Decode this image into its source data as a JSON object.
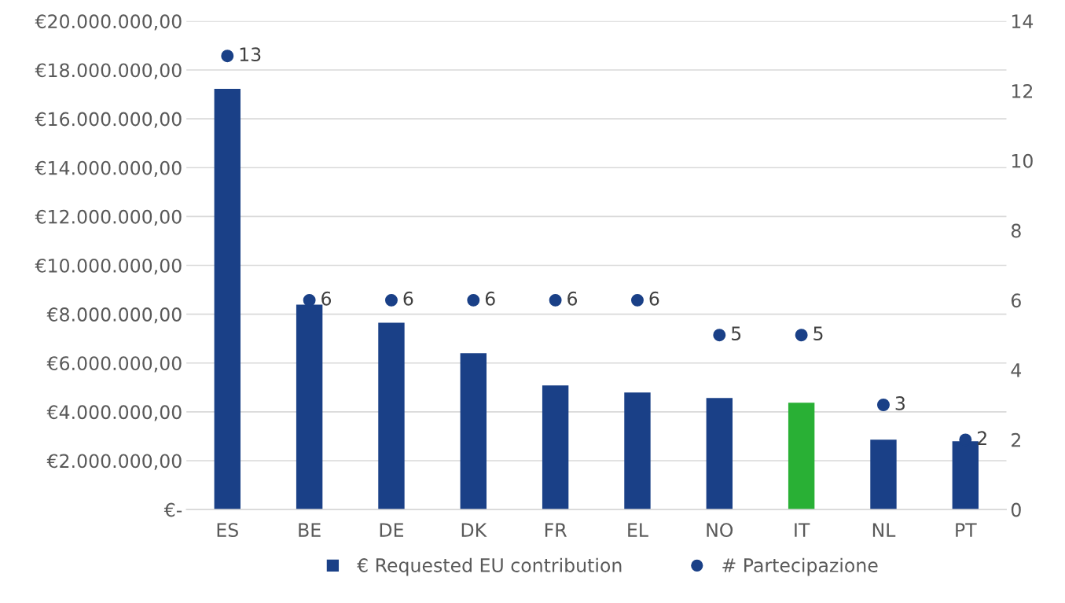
{
  "chart_data": {
    "type": "bar",
    "categories": [
      "ES",
      "BE",
      "DE",
      "DK",
      "FR",
      "EL",
      "NO",
      "IT",
      "NL",
      "PT"
    ],
    "series": [
      {
        "name": "€ Requested EU contribution",
        "color": "#1a4087",
        "colors": [
          "#1a4087",
          "#1a4087",
          "#1a4087",
          "#1a4087",
          "#1a4087",
          "#1a4087",
          "#1a4087",
          "#29b035",
          "#1a4087",
          "#1a4087"
        ],
        "values": [
          17230000,
          8390000,
          7650000,
          6400000,
          5080000,
          4790000,
          4570000,
          4370000,
          2860000,
          2800000
        ]
      },
      {
        "name": "# Partecipazione",
        "type": "scatter",
        "axis": "y2",
        "color": "#1a4087",
        "marker": "circle",
        "data_labels": true,
        "values": [
          13,
          6,
          6,
          6,
          6,
          6,
          5,
          5,
          3,
          2
        ]
      }
    ],
    "ylim": [
      0,
      20000000
    ],
    "yticks": [
      {
        "value": 0,
        "label": "€-"
      },
      {
        "value": 2000000,
        "label": "€2.000.000,00"
      },
      {
        "value": 4000000,
        "label": "€4.000.000,00"
      },
      {
        "value": 6000000,
        "label": "€6.000.000,00"
      },
      {
        "value": 8000000,
        "label": "€8.000.000,00"
      },
      {
        "value": 10000000,
        "label": "€10.000.000,00"
      },
      {
        "value": 12000000,
        "label": "€12.000.000,00"
      },
      {
        "value": 14000000,
        "label": "€14.000.000,00"
      },
      {
        "value": 16000000,
        "label": "€16.000.000,00"
      },
      {
        "value": 18000000,
        "label": "€18.000.000,00"
      },
      {
        "value": 20000000,
        "label": "€20.000.000,00"
      }
    ],
    "y2lim": [
      0,
      14
    ],
    "y2ticks": [
      0,
      2,
      4,
      6,
      8,
      10,
      12,
      14
    ],
    "grid": "y",
    "legend": "bottom"
  }
}
